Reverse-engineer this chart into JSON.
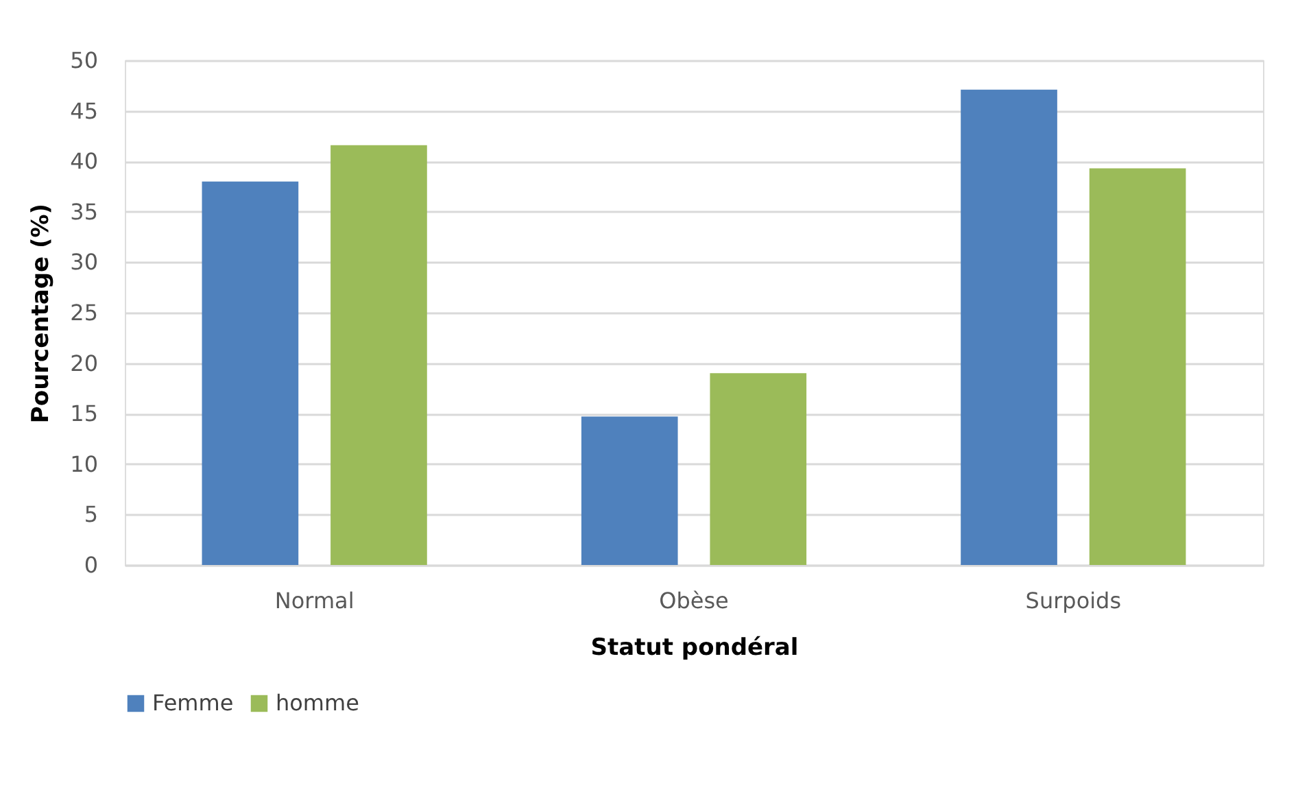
{
  "chart_data": {
    "type": "bar",
    "xlabel": "Statut pondéral",
    "ylabel": "Pourcentage (%)",
    "categories": [
      "Normal",
      "Obèse",
      "Surpoids"
    ],
    "series": [
      {
        "name": "Femme",
        "color": "#4f81bd",
        "values": [
          38.0,
          14.7,
          47.1
        ]
      },
      {
        "name": "homme",
        "color": "#9bbb59",
        "values": [
          41.6,
          19.0,
          39.3
        ]
      }
    ],
    "ylim": [
      0,
      50
    ],
    "yticks": [
      0,
      5,
      10,
      15,
      20,
      25,
      30,
      35,
      40,
      45,
      50
    ],
    "grid": "y",
    "legend": "bottom"
  }
}
